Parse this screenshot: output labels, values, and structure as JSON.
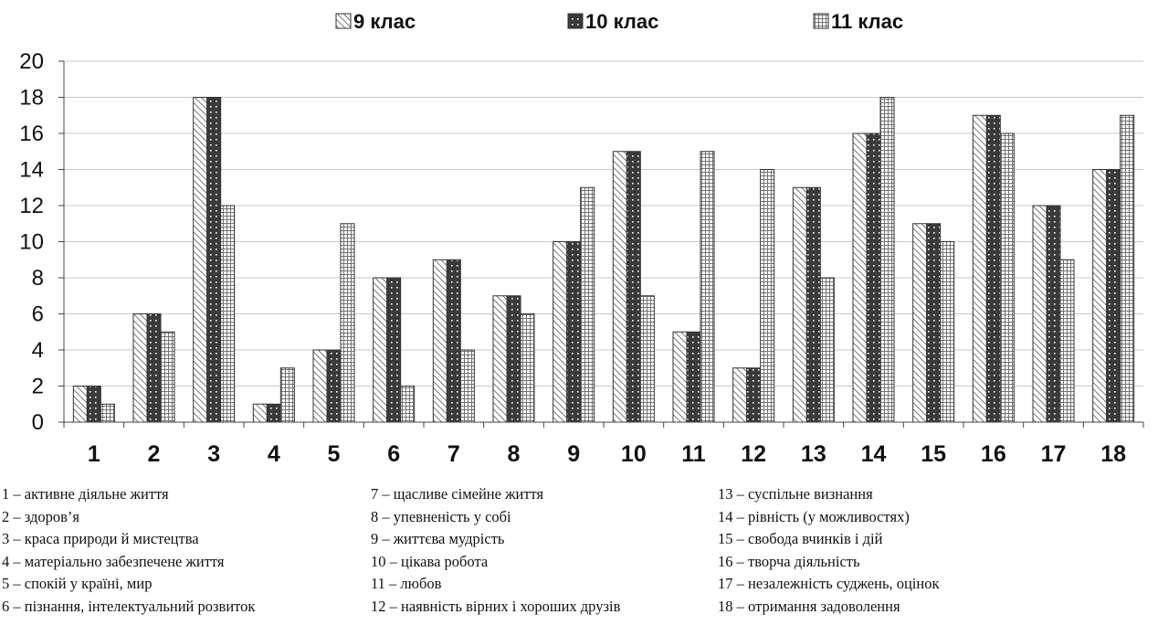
{
  "chart_data": {
    "type": "bar",
    "categories": [
      "1",
      "2",
      "3",
      "4",
      "5",
      "6",
      "7",
      "8",
      "9",
      "10",
      "11",
      "12",
      "13",
      "14",
      "15",
      "16",
      "17",
      "18"
    ],
    "series": [
      {
        "name": "9 клас",
        "values": [
          2,
          6,
          18,
          1,
          4,
          8,
          9,
          7,
          10,
          15,
          5,
          3,
          13,
          16,
          11,
          17,
          12,
          14
        ]
      },
      {
        "name": "10 клас",
        "values": [
          2,
          6,
          18,
          1,
          4,
          8,
          9,
          7,
          10,
          15,
          5,
          3,
          13,
          16,
          11,
          17,
          12,
          14
        ]
      },
      {
        "name": "11 клас",
        "values": [
          1,
          5,
          12,
          3,
          11,
          2,
          4,
          6,
          13,
          7,
          15,
          14,
          8,
          18,
          10,
          16,
          9,
          17
        ]
      }
    ],
    "yticks": [
      "0",
      "2",
      "4",
      "6",
      "8",
      "10",
      "12",
      "14",
      "16",
      "18",
      "20"
    ],
    "ylim": [
      0,
      20
    ],
    "grid": true,
    "legend_position": "top"
  },
  "notes": [
    "1 – активне діяльне життя",
    "2 – здоров’я",
    "3 – краса природи й мистецтва",
    "4 – матеріально забезпечене життя",
    "5 – спокій у країні, мир",
    "6 – пізнання, інтелектуальний розвиток",
    "7 – щасливе сімейне життя",
    "8 – упевненість у собі",
    "9 – життєва мудрість",
    "10 – цікава робота",
    "11 – любов",
    "12 – наявність вірних і хороших друзів",
    "13 – суспільне визнання",
    "14 – рівність (у можливостях)",
    "15 – свобода вчинків і дій",
    "16 – творча діяльність",
    "17 – незалежність суджень, оцінок",
    "18 – отримання задоволення"
  ]
}
